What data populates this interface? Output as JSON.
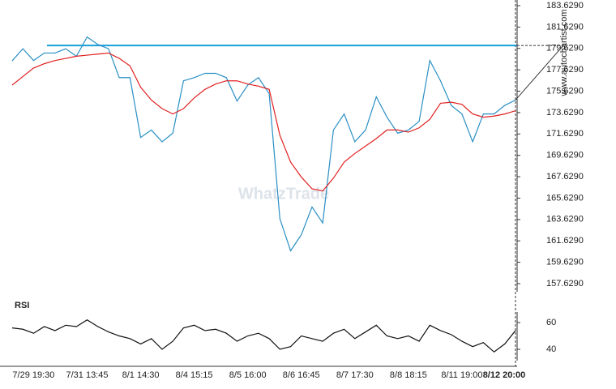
{
  "chart_data": [
    {
      "type": "line",
      "categories": [
        null,
        null,
        "7/29 19:30",
        null,
        null,
        null,
        null,
        "7/31 13:45",
        null,
        null,
        null,
        null,
        "8/1 14:30",
        null,
        null,
        null,
        null,
        "8/4 15:15",
        null,
        null,
        null,
        null,
        "8/5 16:00",
        null,
        null,
        null,
        null,
        "8/6 16:45",
        null,
        null,
        null,
        null,
        "8/7 17:30",
        null,
        null,
        null,
        null,
        "8/8 18:15",
        null,
        null,
        null,
        null,
        "8/11 19:00",
        null,
        null,
        null,
        null,
        "8/12 20:00"
      ],
      "series": [
        {
          "color": "#2a8fc4",
          "values": [
            178.47,
            179.6,
            178.5,
            179.2,
            179.2,
            179.6,
            178.9,
            180.7,
            180.0,
            179.6,
            176.9,
            176.9,
            171.3,
            172.0,
            170.9,
            171.7,
            176.6,
            176.9,
            177.3,
            177.3,
            176.9,
            174.7,
            176.2,
            176.9,
            175.4,
            163.7,
            160.7,
            162.2,
            164.8,
            163.3,
            172.0,
            173.5,
            170.9,
            172.0,
            175.1,
            173.2,
            171.7,
            172.0,
            172.8,
            178.5,
            176.6,
            174.3,
            173.5,
            170.9,
            173.5,
            173.5,
            174.3,
            174.8
          ]
        },
        {
          "color": "#e02020",
          "values": [
            176.2,
            177.0,
            177.8,
            178.2,
            178.5,
            178.7,
            178.9,
            179.0,
            179.1,
            179.2,
            178.7,
            178.0,
            176.0,
            174.8,
            174.0,
            173.5,
            174.0,
            175.0,
            175.8,
            176.3,
            176.6,
            176.6,
            176.3,
            176.1,
            175.8,
            171.5,
            169.0,
            167.6,
            166.5,
            166.3,
            167.5,
            169.0,
            169.8,
            170.5,
            171.2,
            172.0,
            172.0,
            171.8,
            172.2,
            173.0,
            174.5,
            174.6,
            174.4,
            173.5,
            173.2,
            173.3,
            173.5,
            173.8
          ]
        }
      ],
      "level": 179.91,
      "level_color": "#1a9fd8",
      "ylim": [
        156.87,
        184.16
      ],
      "yticks": [
        {
          "value": 157.629,
          "label": "157.6290"
        },
        {
          "value": 159.629,
          "label": "159.6290"
        },
        {
          "value": 161.629,
          "label": "161.6290"
        },
        {
          "value": 163.629,
          "label": "163.6290"
        },
        {
          "value": 165.629,
          "label": "165.6290"
        },
        {
          "value": 167.629,
          "label": "167.6290"
        },
        {
          "value": 169.629,
          "label": "169.6290"
        },
        {
          "value": 171.629,
          "label": "171.6290"
        },
        {
          "value": 173.629,
          "label": "173.6290"
        },
        {
          "value": 175.629,
          "label": "175.6290"
        },
        {
          "value": 177.629,
          "label": "177.6290"
        },
        {
          "value": 179.629,
          "label": "179.6290"
        },
        {
          "value": 181.629,
          "label": "181.6290"
        },
        {
          "value": 183.629,
          "label": "183.6290"
        }
      ],
      "watermark": "WhatzTrade",
      "source": "www.autochartist.com"
    },
    {
      "type": "line",
      "title": "RSI",
      "series": [
        {
          "color": "#111111",
          "values": [
            56,
            55,
            52,
            57,
            54,
            58,
            57,
            62,
            57,
            53,
            50,
            48,
            44,
            48,
            40,
            46,
            56,
            58,
            54,
            55,
            52,
            46,
            50,
            52,
            48,
            40,
            42,
            50,
            48,
            46,
            52,
            55,
            48,
            53,
            58,
            50,
            48,
            50,
            46,
            58,
            54,
            51,
            46,
            42,
            45,
            38,
            44,
            54
          ]
        }
      ],
      "ylim": [
        31.5,
        67.9
      ],
      "yticks": [
        40,
        60
      ]
    }
  ]
}
